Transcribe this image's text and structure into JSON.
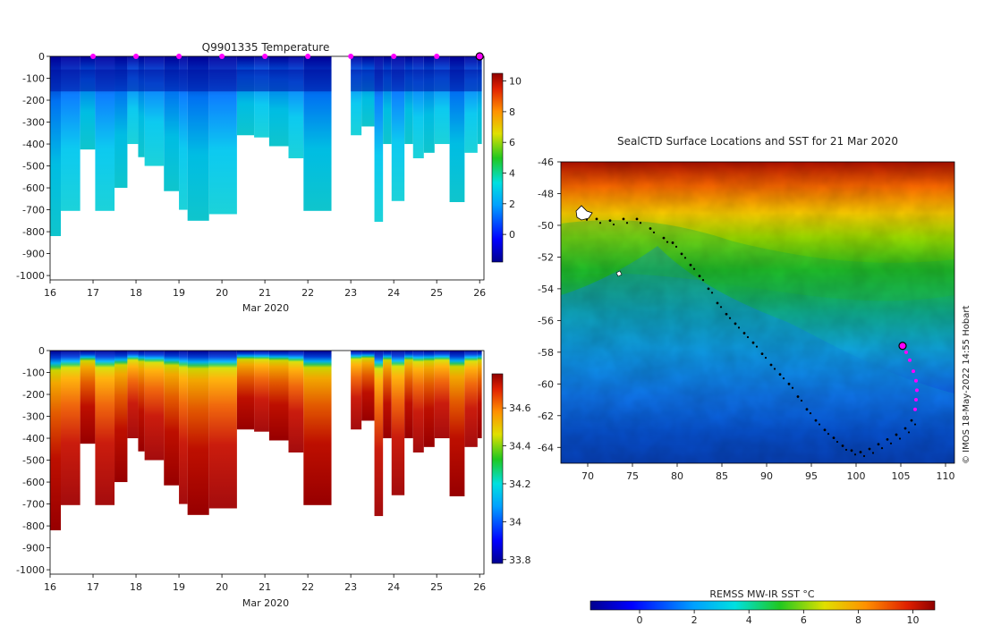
{
  "panel_temp": {
    "title": "Q9901335  Temperature",
    "xlabel": "Mar 2020",
    "x_ticks": [
      "16",
      "17",
      "18",
      "19",
      "20",
      "21",
      "22",
      "23",
      "24",
      "25",
      "26"
    ],
    "y_ticks": [
      "0",
      "-100",
      "-200",
      "-300",
      "-400",
      "-500",
      "-600",
      "-700",
      "-800",
      "-900",
      "-1000"
    ],
    "colorbar_ticks": [
      "10",
      "8",
      "6",
      "4",
      "2",
      "0"
    ]
  },
  "panel_sal": {
    "xlabel": "Mar 2020",
    "x_ticks": [
      "16",
      "17",
      "18",
      "19",
      "20",
      "21",
      "22",
      "23",
      "24",
      "25",
      "26"
    ],
    "y_ticks": [
      "0",
      "-100",
      "-200",
      "-300",
      "-400",
      "-500",
      "-600",
      "-700",
      "-800",
      "-900",
      "-1000"
    ],
    "colorbar_ticks": [
      "34.6",
      "34.4",
      "34.2",
      "34",
      "33.8"
    ]
  },
  "map": {
    "title": "SealCTD Surface Locations and SST for 21 Mar 2020",
    "x_ticks": [
      "70",
      "75",
      "80",
      "85",
      "90",
      "95",
      "100",
      "105",
      "110"
    ],
    "y_ticks": [
      "-46",
      "-48",
      "-50",
      "-52",
      "-54",
      "-56",
      "-58",
      "-60",
      "-62",
      "-64"
    ],
    "colorbar_label": "REMSS MW-IR SST °C",
    "colorbar_ticks": [
      "0",
      "2",
      "4",
      "6",
      "8",
      "10"
    ],
    "credit": "© IMOS 18-May-2022 14:55 Hobart"
  },
  "colors": {
    "cold": "#00008f",
    "blue": "#0050ff",
    "cyan": "#00c8ff",
    "teal": "#20d8b0",
    "green": "#28c800",
    "yellow": "#ffe000",
    "orange": "#ff9000",
    "red": "#d80000",
    "darkred": "#8f0000",
    "marker": "#ff00ff"
  },
  "chart_data": [
    {
      "type": "heatmap",
      "title": "Q9901335  Temperature",
      "xlabel": "Mar 2020",
      "ylabel": "",
      "xlim": [
        16,
        26.1
      ],
      "ylim": [
        -1020,
        0
      ],
      "colorbar_range": [
        -1.8,
        10.5
      ],
      "columns": [
        {
          "x0": 16.0,
          "x1": 16.25,
          "depth": 820
        },
        {
          "x0": 16.25,
          "x1": 16.7,
          "depth": 705
        },
        {
          "x0": 16.7,
          "x1": 17.05,
          "depth": 425
        },
        {
          "x0": 17.05,
          "x1": 17.5,
          "depth": 705
        },
        {
          "x0": 17.5,
          "x1": 17.8,
          "depth": 600
        },
        {
          "x0": 17.8,
          "x1": 18.05,
          "depth": 400
        },
        {
          "x0": 18.05,
          "x1": 18.2,
          "depth": 460
        },
        {
          "x0": 18.2,
          "x1": 18.65,
          "depth": 500
        },
        {
          "x0": 18.65,
          "x1": 19.0,
          "depth": 615
        },
        {
          "x0": 19.0,
          "x1": 19.2,
          "depth": 700
        },
        {
          "x0": 19.2,
          "x1": 19.7,
          "depth": 750
        },
        {
          "x0": 19.7,
          "x1": 20.35,
          "depth": 720
        },
        {
          "x0": 20.35,
          "x1": 20.75,
          "depth": 360
        },
        {
          "x0": 20.75,
          "x1": 21.1,
          "depth": 370
        },
        {
          "x0": 21.1,
          "x1": 21.55,
          "depth": 410
        },
        {
          "x0": 21.55,
          "x1": 21.9,
          "depth": 465
        },
        {
          "x0": 21.9,
          "x1": 22.55,
          "depth": 705
        },
        {
          "x0": 23.0,
          "x1": 23.25,
          "depth": 360
        },
        {
          "x0": 23.25,
          "x1": 23.55,
          "depth": 320
        },
        {
          "x0": 23.55,
          "x1": 23.75,
          "depth": 755
        },
        {
          "x0": 23.75,
          "x1": 23.95,
          "depth": 400
        },
        {
          "x0": 23.95,
          "x1": 24.25,
          "depth": 660
        },
        {
          "x0": 24.25,
          "x1": 24.45,
          "depth": 400
        },
        {
          "x0": 24.45,
          "x1": 24.7,
          "depth": 465
        },
        {
          "x0": 24.7,
          "x1": 24.95,
          "depth": 440
        },
        {
          "x0": 24.95,
          "x1": 25.3,
          "depth": 400
        },
        {
          "x0": 25.3,
          "x1": 25.65,
          "depth": 665
        },
        {
          "x0": 25.65,
          "x1": 25.95,
          "depth": 440
        },
        {
          "x0": 25.95,
          "x1": 26.05,
          "depth": 400
        }
      ],
      "profile_markers_x": [
        17,
        18,
        19,
        20,
        21,
        22,
        23,
        24,
        25
      ],
      "current_marker_x": 26
    },
    {
      "type": "heatmap",
      "title": "",
      "xlabel": "Mar 2020",
      "ylabel": "",
      "xlim": [
        16,
        26.1
      ],
      "ylim": [
        -1020,
        0
      ],
      "colorbar_range": [
        33.78,
        34.78
      ],
      "columns": "same profile columns as temperature panel"
    },
    {
      "type": "scatter",
      "title": "SealCTD Surface Locations and SST for 21 Mar 2020",
      "xlim": [
        67,
        111
      ],
      "ylim": [
        -65,
        -46
      ],
      "colorbar_label": "REMSS MW-IR SST °C",
      "colorbar_range": [
        -1.8,
        10.8
      ],
      "track": [
        [
          69.5,
          -49.4
        ],
        [
          71,
          -49.6
        ],
        [
          72.5,
          -49.7
        ],
        [
          74,
          -49.6
        ],
        [
          75.5,
          -49.6
        ],
        [
          77,
          -50.2
        ],
        [
          78.5,
          -50.8
        ],
        [
          79.5,
          -51.1
        ],
        [
          80.5,
          -51.8
        ],
        [
          81.5,
          -52.5
        ],
        [
          82.5,
          -53.2
        ],
        [
          83.5,
          -54.0
        ],
        [
          84.5,
          -54.9
        ],
        [
          85.5,
          -55.6
        ],
        [
          86.5,
          -56.2
        ],
        [
          87.5,
          -56.8
        ],
        [
          88.5,
          -57.4
        ],
        [
          89.5,
          -58.1
        ],
        [
          90.5,
          -58.8
        ],
        [
          91.5,
          -59.4
        ],
        [
          92.5,
          -60.0
        ],
        [
          93.5,
          -60.8
        ],
        [
          94.5,
          -61.6
        ],
        [
          95.5,
          -62.3
        ],
        [
          96.5,
          -62.9
        ],
        [
          97.5,
          -63.4
        ],
        [
          98.5,
          -63.9
        ],
        [
          99.5,
          -64.2
        ],
        [
          100.5,
          -64.3
        ],
        [
          101.5,
          -64.1
        ],
        [
          102.5,
          -63.8
        ],
        [
          103.5,
          -63.5
        ],
        [
          104.5,
          -63.2
        ],
        [
          105.5,
          -62.8
        ],
        [
          106.2,
          -62.3
        ]
      ],
      "recent_positions": [
        [
          105.6,
          -58.0
        ],
        [
          106.0,
          -58.5
        ],
        [
          106.4,
          -59.2
        ],
        [
          106.7,
          -59.8
        ],
        [
          106.8,
          -60.4
        ],
        [
          106.7,
          -61.0
        ],
        [
          106.6,
          -61.6
        ]
      ],
      "current_position": [
        105.2,
        -57.6
      ]
    }
  ]
}
